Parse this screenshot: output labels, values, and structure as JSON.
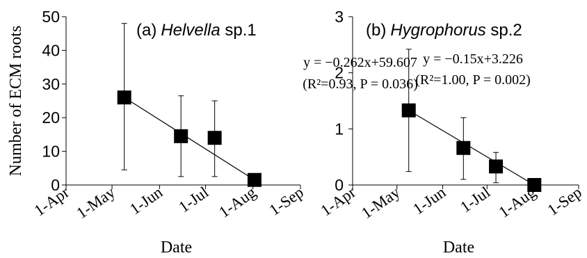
{
  "ylabel": "Number of ECM roots",
  "chart_data": [
    {
      "type": "scatter",
      "panel_label": "(a)",
      "title_genus": "Helvella",
      "title_species": " sp.1",
      "xlabel": "Date",
      "x_ticks": [
        "1-Apr",
        "1-May",
        "1-Jun",
        "1-Jul",
        "1-Aug",
        "1-Sep"
      ],
      "xlim": [
        "2000-04-01",
        "2000-09-01"
      ],
      "ylim": [
        0,
        50
      ],
      "y_ticks": [
        0,
        10,
        20,
        30,
        40,
        50
      ],
      "grid": false,
      "points": [
        {
          "x": "2000-05-09",
          "y": 26,
          "err_low": 4.5,
          "err_high": 48
        },
        {
          "x": "2000-06-15",
          "y": 14.5,
          "err_low": 2.5,
          "err_high": 26.5
        },
        {
          "x": "2000-07-07",
          "y": 14,
          "err_low": 2.5,
          "err_high": 25
        },
        {
          "x": "2000-08-02",
          "y": 1.5,
          "err_low": 1.5,
          "err_high": 1.5
        }
      ],
      "fit": {
        "equation": "y = −0.262x+59.607",
        "stats": "(R²=0.93, P = 0.036)",
        "from": "2000-05-09",
        "to": "2000-08-02"
      },
      "marker_color": "#000000"
    },
    {
      "type": "scatter",
      "panel_label": "(b)",
      "title_genus": "Hygrophorus",
      "title_species": " sp.2",
      "xlabel": "Date",
      "x_ticks": [
        "1-Apr",
        "1-May",
        "1-Jun",
        "1-Jul",
        "1-Aug",
        "1-Sep"
      ],
      "xlim": [
        "2000-04-01",
        "2000-09-01"
      ],
      "ylim": [
        0,
        3
      ],
      "y_ticks": [
        0,
        1,
        2,
        3
      ],
      "grid": false,
      "points": [
        {
          "x": "2000-05-09",
          "y": 1.33,
          "err_low": 0.24,
          "err_high": 2.42
        },
        {
          "x": "2000-06-15",
          "y": 0.66,
          "err_low": 0.1,
          "err_high": 1.2
        },
        {
          "x": "2000-07-07",
          "y": 0.33,
          "err_low": 0.04,
          "err_high": 0.58
        },
        {
          "x": "2000-08-02",
          "y": 0.0,
          "err_low": 0.0,
          "err_high": 0.0
        }
      ],
      "fit": {
        "equation": "y = −0.15x+3.226",
        "stats": "(R²=1.00, P = 0.002)",
        "from": "2000-05-09",
        "to": "2000-08-02"
      },
      "marker_color": "#000000"
    }
  ]
}
